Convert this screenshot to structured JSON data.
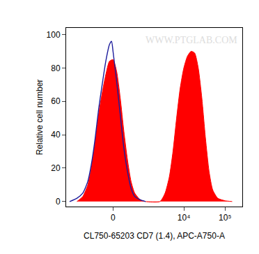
{
  "chart_data": {
    "type": "line",
    "x_label": "CL750-65203 CD7 (1.4), APC-A750-A",
    "y_label": "Relative cell number",
    "watermark": "WWW.PTGLAB.COM",
    "xlim": [
      -2600,
      262144
    ],
    "xticks": [
      0,
      {
        "value": 10000,
        "label": "10⁴"
      },
      {
        "value": 100000,
        "label": "10⁵"
      }
    ],
    "ylim": [
      -3,
      104
    ],
    "yticks": [
      0,
      20,
      40,
      60,
      80,
      100
    ],
    "grid": false,
    "series": [
      {
        "type": "area",
        "color": "#ff0000",
        "x": [
          -1406,
          -1000,
          -733,
          -585,
          -452,
          -342,
          -245,
          -158,
          -77,
          0,
          77,
          158,
          245,
          342,
          452,
          585,
          840,
          1140,
          2610,
          3473,
          4435,
          5426,
          6642,
          8130,
          9950,
          12170,
          14920,
          18250,
          22340,
          27320,
          33440,
          40950,
          50100,
          66500,
          99600,
          149000
        ],
        "values": [
          0,
          3,
          10,
          20,
          35,
          52,
          65,
          76,
          84,
          85,
          78,
          62,
          42,
          25,
          12,
          5,
          1,
          0,
          0,
          5,
          15,
          30,
          50,
          68,
          80,
          87,
          90,
          89,
          80,
          62,
          38,
          18,
          7,
          2,
          0.5,
          0
        ]
      },
      {
        "type": "line",
        "color": "#1c1c9c",
        "x": [
          -2136,
          -1406,
          -1000,
          -733,
          -585,
          -452,
          -342,
          -245,
          -158,
          -77,
          -31,
          0,
          77,
          158,
          245,
          342,
          452,
          585,
          840,
          1140
        ],
        "values": [
          0,
          2,
          5,
          12,
          22,
          37,
          55,
          70,
          84,
          94,
          96,
          90,
          72,
          52,
          32,
          18,
          8,
          3,
          1,
          0
        ]
      }
    ]
  }
}
